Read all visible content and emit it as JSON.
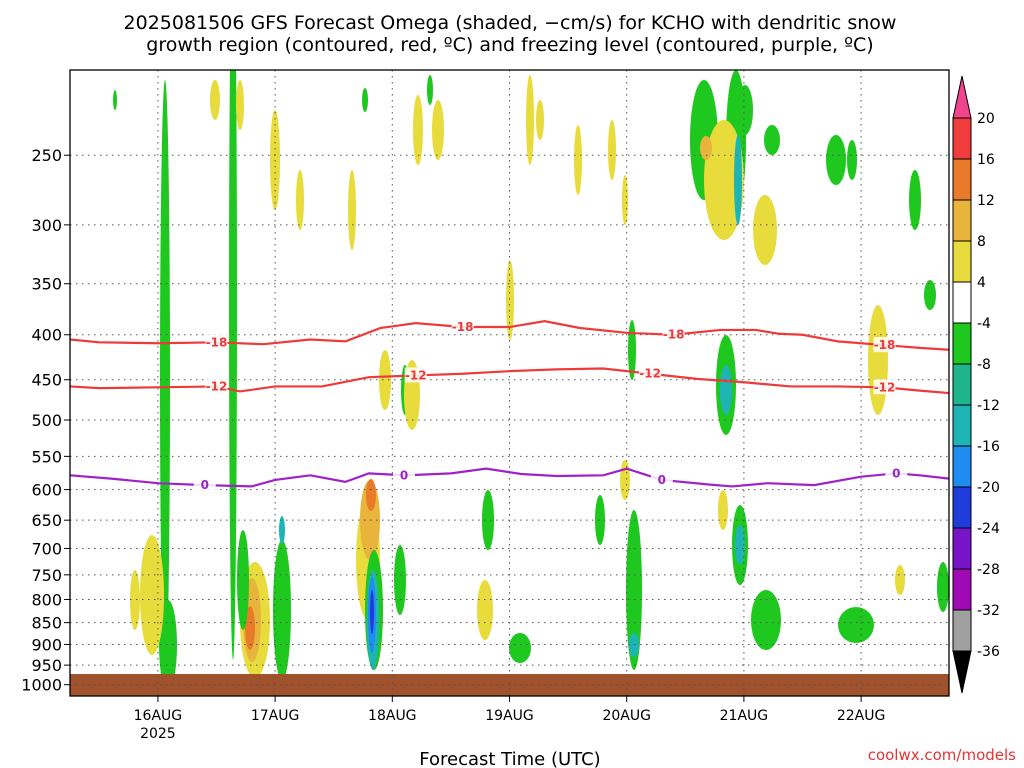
{
  "title_line1": "2025081506 GFS Forecast Omega (shaded, −cm/s) for KCHO with dendritic snow",
  "title_line2": "growth region (contoured, red, ºC) and freezing level (contoured, purple, ºC)",
  "x_axis_title": "Forecast Time (UTC)",
  "credit": "coolwx.com/models",
  "colors": {
    "dendritic_red": "#ee3a3a",
    "freezing_purple": "#9e22c8",
    "ground_brown": "#a0522d",
    "grid": "#555555"
  },
  "chart_data": {
    "type": "heatmap",
    "title": "2025081506 GFS Forecast Omega (shaded, −cm/s) for KCHO with dendritic snow growth region (contoured, red, ºC) and freezing level (contoured, purple, ºC)",
    "xlabel": "Forecast Time (UTC)",
    "ylabel": "",
    "y_scale": "log-pressure",
    "y_reversed": true,
    "ylim_hPa": [
      1030,
      200
    ],
    "y_ticks": [
      250,
      300,
      350,
      400,
      450,
      500,
      550,
      600,
      650,
      700,
      750,
      800,
      850,
      900,
      950,
      1000
    ],
    "x_ticks": [
      {
        "day": 16,
        "label": "16AUG",
        "sub": "2025"
      },
      {
        "day": 17,
        "label": "17AUG",
        "sub": ""
      },
      {
        "day": 18,
        "label": "18AUG",
        "sub": ""
      },
      {
        "day": 19,
        "label": "19AUG",
        "sub": ""
      },
      {
        "day": 20,
        "label": "20AUG",
        "sub": ""
      },
      {
        "day": 21,
        "label": "21AUG",
        "sub": ""
      },
      {
        "day": 22,
        "label": "22AUG",
        "sub": ""
      }
    ],
    "xlim_days": [
      15.25,
      22.75
    ],
    "grid": true,
    "colorbar": {
      "labels": [
        "20",
        "16",
        "12",
        "8",
        "4",
        "-4",
        "-8",
        "-12",
        "-16",
        "-20",
        "-24",
        "-28",
        "-32",
        "-36"
      ],
      "colors": [
        "#f0448c",
        "#f03c3c",
        "#e87a2a",
        "#e8b43c",
        "#e8dc3c",
        "#ffffff",
        "#1ec81e",
        "#1eb48c",
        "#1eb4b4",
        "#1e8cf0",
        "#1e3cdc",
        "#7814c8",
        "#a00ab4",
        "#a0a0a0",
        "#000000"
      ]
    },
    "contours": [
      {
        "name": "-18",
        "color": "#ee3a3a",
        "labels": [
          "-18",
          "-18",
          "-18",
          "-18"
        ],
        "x": [
          15.25,
          15.5,
          16.0,
          16.5,
          16.9,
          17.3,
          17.6,
          17.9,
          18.2,
          18.6,
          19.0,
          19.3,
          19.6,
          20.0,
          20.4,
          20.8,
          21.1,
          21.3,
          21.5,
          21.8,
          22.2,
          22.5,
          22.75
        ],
        "y": [
          405,
          408,
          409,
          408,
          410,
          405,
          407,
          393,
          388,
          392,
          392,
          386,
          393,
          398,
          400,
          395,
          395,
          399,
          400,
          407,
          411,
          414,
          416
        ]
      },
      {
        "name": "-12",
        "color": "#ee3a3a",
        "labels": [
          "-12",
          "-12",
          "-12",
          "-12"
        ],
        "x": [
          15.25,
          15.5,
          16.0,
          16.5,
          16.7,
          17.0,
          17.4,
          17.8,
          18.2,
          18.6,
          19.0,
          19.4,
          19.8,
          20.2,
          20.6,
          21.0,
          21.4,
          21.8,
          22.2,
          22.5,
          22.75
        ],
        "y": [
          458,
          460,
          459,
          458,
          464,
          458,
          458,
          447,
          445,
          443,
          440,
          438,
          437,
          443,
          449,
          453,
          458,
          458,
          459,
          463,
          466
        ]
      },
      {
        "name": "0",
        "color": "#9e22c8",
        "labels": [
          "0",
          "0",
          "0",
          "0"
        ],
        "x": [
          15.25,
          15.6,
          16.0,
          16.4,
          16.8,
          17.0,
          17.3,
          17.6,
          17.8,
          18.1,
          18.5,
          18.8,
          19.1,
          19.4,
          19.8,
          20.0,
          20.3,
          20.7,
          20.9,
          21.2,
          21.6,
          22.0,
          22.3,
          22.5,
          22.75
        ],
        "y": [
          578,
          583,
          590,
          593,
          595,
          585,
          578,
          588,
          575,
          578,
          575,
          568,
          576,
          579,
          578,
          568,
          585,
          592,
          595,
          590,
          593,
          580,
          575,
          578,
          583
        ]
      }
    ]
  }
}
